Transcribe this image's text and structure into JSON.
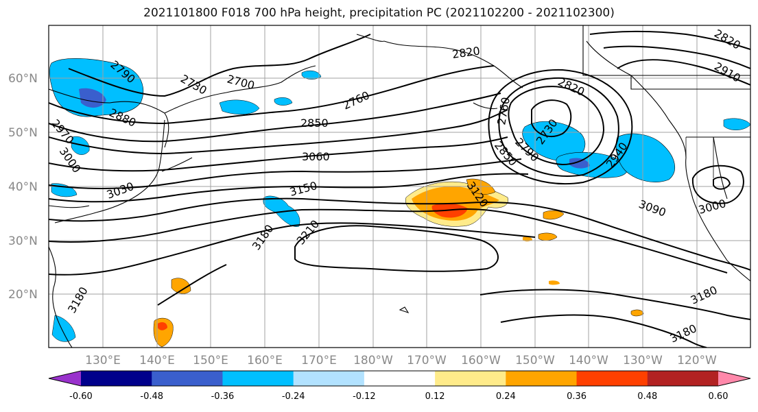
{
  "title": "2021101800 F018 700 hPa height, precipitation PC (2021102200 - 2021102300)",
  "lat_labels": [
    "60°N",
    "50°N",
    "40°N",
    "30°N",
    "20°N"
  ],
  "lon_labels": [
    "130°E",
    "140°E",
    "150°E",
    "160°E",
    "170°E",
    "180°W",
    "170°W",
    "160°W",
    "150°W",
    "140°W",
    "130°W",
    "120°W"
  ],
  "contour_labels": [
    "2790",
    "2730",
    "2700",
    "2880",
    "2970",
    "3000",
    "2760",
    "2850",
    "3060",
    "3030",
    "3150",
    "3180",
    "3210",
    "2820",
    "2760",
    "2730",
    "2790",
    "2820",
    "2850",
    "2910",
    "3120",
    "2940",
    "2820",
    "3090",
    "3000",
    "3180",
    "3180",
    "3180"
  ],
  "colorbar": {
    "colors": [
      "#9932cc",
      "#00008b",
      "#3a5fcd",
      "#00bfff",
      "#b2e2ff",
      "#ffffff",
      "#ffeb8a",
      "#ffa500",
      "#ff4000",
      "#b22222",
      "#ff88aa"
    ],
    "tick_labels": [
      "-0.60",
      "-0.48",
      "-0.36",
      "-0.24",
      "-0.12",
      "0.12",
      "0.24",
      "0.36",
      "0.48",
      "0.60"
    ]
  }
}
